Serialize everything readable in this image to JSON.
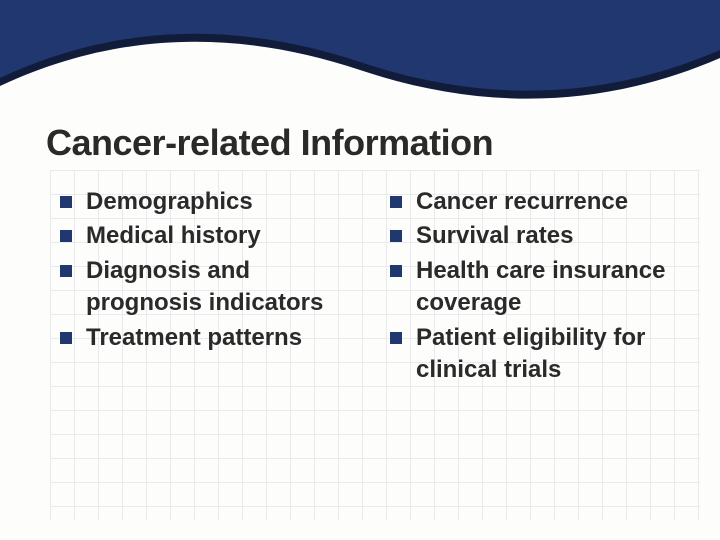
{
  "colors": {
    "banner": "#20376f",
    "banner_shadow": "#101c3a",
    "bullet": "#20376f",
    "title": "#2a2a2a",
    "text": "#2a2a2a",
    "grid": "#d8dce4",
    "background": "#fdfdfb"
  },
  "typography": {
    "title_fontsize": 36,
    "item_fontsize": 24,
    "title_weight": 900,
    "item_weight": 700
  },
  "title": "Cancer-related Information",
  "left_items": [
    "Demographics",
    "Medical history",
    "Diagnosis and prognosis indicators",
    "Treatment patterns"
  ],
  "right_items": [
    "Cancer recurrence",
    "Survival rates",
    "Health care insurance coverage",
    "Patient eligibility for clinical trials"
  ]
}
